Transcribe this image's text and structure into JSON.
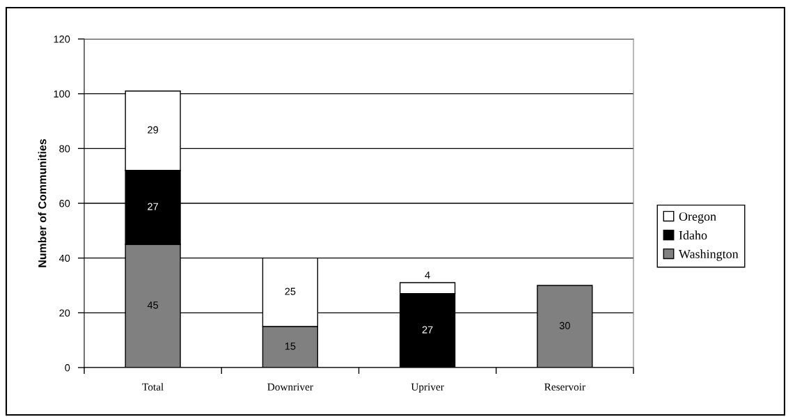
{
  "chart_data": {
    "type": "bar",
    "stacked": true,
    "ylabel": "Number of Communities",
    "categories": [
      "Total",
      "Downriver",
      "Upriver",
      "Reservoir"
    ],
    "series": [
      {
        "name": "Washington",
        "color": "#808080",
        "values": [
          45,
          15,
          null,
          30
        ],
        "value_labels": [
          "45",
          "15",
          null,
          "30"
        ]
      },
      {
        "name": "Idaho",
        "color": "#000000",
        "values": [
          27,
          null,
          27,
          null
        ],
        "value_labels": [
          "27",
          null,
          "27",
          null
        ]
      },
      {
        "name": "Oregon",
        "color": "#ffffff",
        "values": [
          29,
          25,
          4,
          null
        ],
        "value_labels": [
          "29",
          "25",
          "4",
          null
        ]
      }
    ],
    "ylim": [
      0,
      120
    ],
    "yticks": [
      0,
      20,
      40,
      60,
      80,
      100,
      120
    ],
    "grid": "y",
    "legend": "right"
  }
}
